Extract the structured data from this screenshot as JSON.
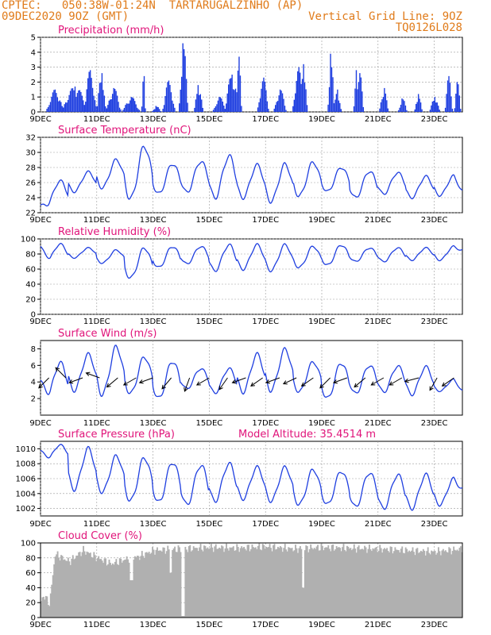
{
  "header": {
    "line1_left": "CPTEC:   050:38W-01:24N  TARTARUGALZINHO (AP)",
    "line2_left": "09DEC2020 9OZ (GMT)",
    "line2_right": "Vertical Grid Line: 9OZ",
    "line3_right": "TQ0126L028"
  },
  "colors": {
    "header": "#e07b1a",
    "panel_title": "#e0147a",
    "series": "#1f3fe0",
    "bars": "#1f3fe0",
    "cloud": "#b0b0b0",
    "grid": "#999999"
  },
  "x_ticks": [
    "9DEC",
    "11DEC",
    "13DEC",
    "15DEC",
    "17DEC",
    "19DEC",
    "21DEC",
    "23DEC"
  ],
  "chart_data": [
    {
      "type": "bar",
      "title": "Precipitation (mm/h)",
      "ylim": [
        0,
        5
      ],
      "yticks": [
        "0",
        "1",
        "2",
        "3",
        "4",
        "5"
      ],
      "x_range_days": [
        0,
        15
      ],
      "grid": true,
      "events": [
        {
          "day": 0.5,
          "dur": 0.6,
          "peak": 1.5
        },
        {
          "day": 1.2,
          "dur": 0.9,
          "peak": 1.7
        },
        {
          "day": 1.75,
          "dur": 0.4,
          "peak": 2.8
        },
        {
          "day": 2.15,
          "dur": 0.3,
          "peak": 2.6
        },
        {
          "day": 2.6,
          "dur": 0.5,
          "peak": 1.6
        },
        {
          "day": 3.2,
          "dur": 0.6,
          "peak": 1.0
        },
        {
          "day": 3.65,
          "dur": 0.15,
          "peak": 2.4
        },
        {
          "day": 4.1,
          "dur": 0.3,
          "peak": 0.4
        },
        {
          "day": 4.55,
          "dur": 0.4,
          "peak": 2.1
        },
        {
          "day": 5.05,
          "dur": 0.3,
          "peak": 4.6
        },
        {
          "day": 5.6,
          "dur": 0.3,
          "peak": 1.8
        },
        {
          "day": 6.35,
          "dur": 0.45,
          "peak": 1.0
        },
        {
          "day": 6.8,
          "dur": 0.5,
          "peak": 2.5
        },
        {
          "day": 7.05,
          "dur": 0.15,
          "peak": 3.7
        },
        {
          "day": 7.9,
          "dur": 0.35,
          "peak": 2.3
        },
        {
          "day": 8.5,
          "dur": 0.45,
          "peak": 1.5
        },
        {
          "day": 9.15,
          "dur": 0.4,
          "peak": 3.0
        },
        {
          "day": 9.35,
          "dur": 0.25,
          "peak": 3.2
        },
        {
          "day": 10.3,
          "dur": 0.2,
          "peak": 3.9
        },
        {
          "day": 10.55,
          "dur": 0.25,
          "peak": 1.5
        },
        {
          "day": 11.2,
          "dur": 0.15,
          "peak": 2.8
        },
        {
          "day": 11.35,
          "dur": 0.25,
          "peak": 2.6
        },
        {
          "day": 12.2,
          "dur": 0.3,
          "peak": 1.6
        },
        {
          "day": 12.85,
          "dur": 0.3,
          "peak": 0.9
        },
        {
          "day": 13.4,
          "dur": 0.25,
          "peak": 1.2
        },
        {
          "day": 14.0,
          "dur": 0.35,
          "peak": 1.0
        },
        {
          "day": 14.5,
          "dur": 0.25,
          "peak": 2.4
        },
        {
          "day": 14.8,
          "dur": 0.2,
          "peak": 2.0
        }
      ]
    },
    {
      "type": "line",
      "title": "Surface Temperature (nC)",
      "ylim": [
        22,
        32
      ],
      "yticks": [
        "22",
        "24",
        "26",
        "28",
        "30",
        "32"
      ],
      "x_range_days": [
        0,
        15
      ],
      "grid": true,
      "daily_max": [
        26.2,
        27.4,
        29.0,
        30.8,
        28.5,
        28.8,
        29.5,
        28.3,
        28.4,
        28.7,
        28.0,
        27.5,
        27.3,
        26.8,
        26.9
      ],
      "daily_min": [
        23.0,
        24.8,
        25.3,
        23.8,
        24.5,
        24.7,
        24.0,
        24.0,
        23.5,
        24.2,
        24.8,
        24.0,
        24.5,
        24.0,
        24.3
      ],
      "start_value": 23.0,
      "end_value": 25.0
    },
    {
      "type": "line",
      "title": "Relative Humidity (%)",
      "ylim": [
        0,
        100
      ],
      "yticks": [
        "0",
        "20",
        "40",
        "60",
        "80",
        "100"
      ],
      "x_range_days": [
        0,
        15
      ],
      "grid": true,
      "daily_max": [
        93,
        88,
        85,
        88,
        90,
        90,
        92,
        92,
        92,
        90,
        92,
        88,
        88,
        88,
        90
      ],
      "daily_min": [
        70,
        75,
        68,
        48,
        62,
        67,
        58,
        60,
        58,
        62,
        65,
        70,
        70,
        72,
        72
      ],
      "start_value": 90,
      "end_value": 86
    },
    {
      "type": "line",
      "title": "Surface Wind (m/s)",
      "ylim": [
        0,
        9
      ],
      "yticks": [
        "2",
        "4",
        "6",
        "8"
      ],
      "x_range_days": [
        0,
        15
      ],
      "grid": false,
      "daily_max": [
        6.3,
        7.3,
        8.2,
        7.0,
        6.5,
        5.6,
        5.6,
        7.3,
        7.9,
        6.4,
        6.3,
        6.0,
        5.9,
        5.8,
        4.3
      ],
      "daily_min": [
        2.0,
        3.0,
        2.5,
        2.6,
        2.0,
        3.2,
        2.7,
        2.8,
        3.0,
        2.8,
        2.0,
        2.6,
        2.8,
        2.5,
        2.9
      ],
      "start_value": 4.2,
      "end_value": 3.0,
      "arrow_days": [
        0.3,
        0.9,
        1.5,
        2.1,
        2.75,
        3.4,
        4.0,
        4.65,
        5.3,
        6.0,
        6.65,
        7.3,
        7.9,
        8.5,
        9.1,
        9.7,
        10.3,
        10.9,
        11.55,
        12.2,
        12.85,
        13.45,
        14.1,
        14.7
      ],
      "arrow_dirs_deg": [
        225,
        135,
        200,
        160,
        220,
        210,
        200,
        230,
        250,
        210,
        235,
        200,
        215,
        200,
        205,
        215,
        225,
        200,
        220,
        210,
        210,
        195,
        240,
        215
      ]
    },
    {
      "type": "line",
      "title": "Surface Pressure (hPa)",
      "annotation": "Model Altitude: 35.4514 m",
      "ylim": [
        1001,
        1011
      ],
      "yticks": [
        "1002",
        "1004",
        "1006",
        "1008",
        "1010"
      ],
      "x_range_days": [
        0,
        15
      ],
      "grid": true,
      "daily_max": [
        1010.5,
        1010.0,
        1009.0,
        1008.8,
        1008.2,
        1007.8,
        1008.0,
        1007.5,
        1007.5,
        1007.2,
        1007.0,
        1006.8,
        1006.5,
        1006.5,
        1006.0
      ],
      "daily_min": [
        1008.5,
        1004.6,
        1004.2,
        1003.0,
        1002.8,
        1002.5,
        1003.0,
        1003.3,
        1003.0,
        1002.5,
        1002.5,
        1002.2,
        1002.0,
        1002.0,
        1002.5
      ],
      "start_value": 1009.8,
      "end_value": 1004.8
    },
    {
      "type": "area",
      "title": "Cloud Cover (%)",
      "ylim": [
        0,
        100
      ],
      "yticks": [
        "0",
        "20",
        "40",
        "60",
        "80",
        "100"
      ],
      "x_range_days": [
        0,
        15
      ],
      "grid": true,
      "profile_days": [
        0,
        0.1,
        0.3,
        0.5,
        1.0,
        1.5,
        2.0,
        2.5,
        3.0,
        3.5,
        4.0,
        5.0,
        6.0,
        7.0,
        8.0,
        9.0,
        10.0,
        11.0,
        12.0,
        13.0,
        14.0,
        15.0
      ],
      "profile_values": [
        22,
        30,
        18,
        85,
        75,
        90,
        80,
        72,
        78,
        82,
        90,
        92,
        94,
        93,
        95,
        92,
        94,
        93,
        92,
        90,
        88,
        92
      ],
      "dips": [
        {
          "day": 5.05,
          "value": 2
        },
        {
          "day": 4.6,
          "value": 60
        },
        {
          "day": 9.3,
          "value": 40
        },
        {
          "day": 3.2,
          "value": 50
        }
      ]
    }
  ]
}
